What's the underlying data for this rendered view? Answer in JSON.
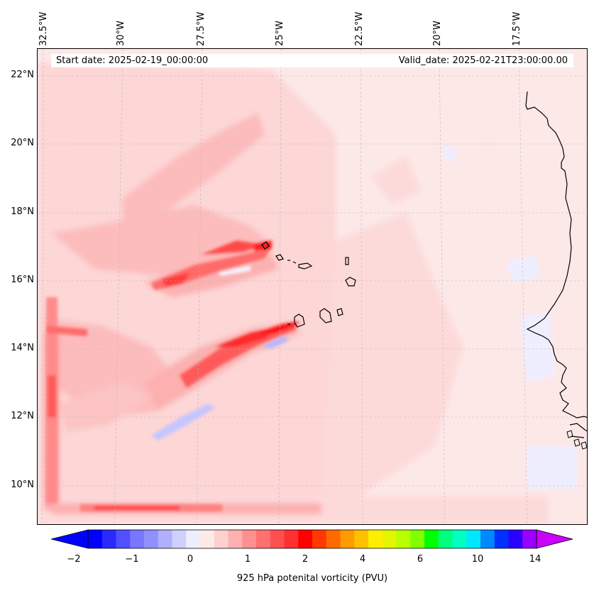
{
  "map": {
    "start_date": "Start date: 2025-02-19_00:00:00",
    "valid_date": "Valid_date: 2025-02-21T23:00:00.00",
    "lon_labels": [
      "32.5°W",
      "30°W",
      "27.5°W",
      "25°W",
      "22.5°W",
      "20°W",
      "17.5°W"
    ],
    "lat_labels": [
      "22°N",
      "20°N",
      "18°N",
      "16°N",
      "14°N",
      "12°N",
      "10°N"
    ],
    "region": "Eastern tropical Atlantic, Cape Verde Islands and West African coast",
    "field": "925 hPa potential vorticity"
  },
  "colorbar": {
    "label": "925 hPa potenital vorticity (PVU)",
    "tick_labels": [
      "−2",
      "−1",
      "0",
      "1",
      "2",
      "4",
      "6",
      "10",
      "14"
    ],
    "colors": [
      "#0000ff",
      "#2a2aff",
      "#5050ff",
      "#7777ff",
      "#9090ff",
      "#b0b0ff",
      "#d0d0ff",
      "#eeeeff",
      "#ffeaea",
      "#ffd0d0",
      "#ffb0b0",
      "#ff9090",
      "#ff7070",
      "#ff5050",
      "#ff3030",
      "#ff0000",
      "#ff3a00",
      "#ff6a00",
      "#ff9a00",
      "#ffc000",
      "#ffee00",
      "#e4f500",
      "#b8ff00",
      "#80ff00",
      "#00ff00",
      "#00ff80",
      "#00ffc0",
      "#00e8ff",
      "#0088ff",
      "#0030ff",
      "#2a00ff",
      "#9900ff"
    ],
    "min_color": "#0000ff",
    "max_color": "#cc00ff"
  }
}
